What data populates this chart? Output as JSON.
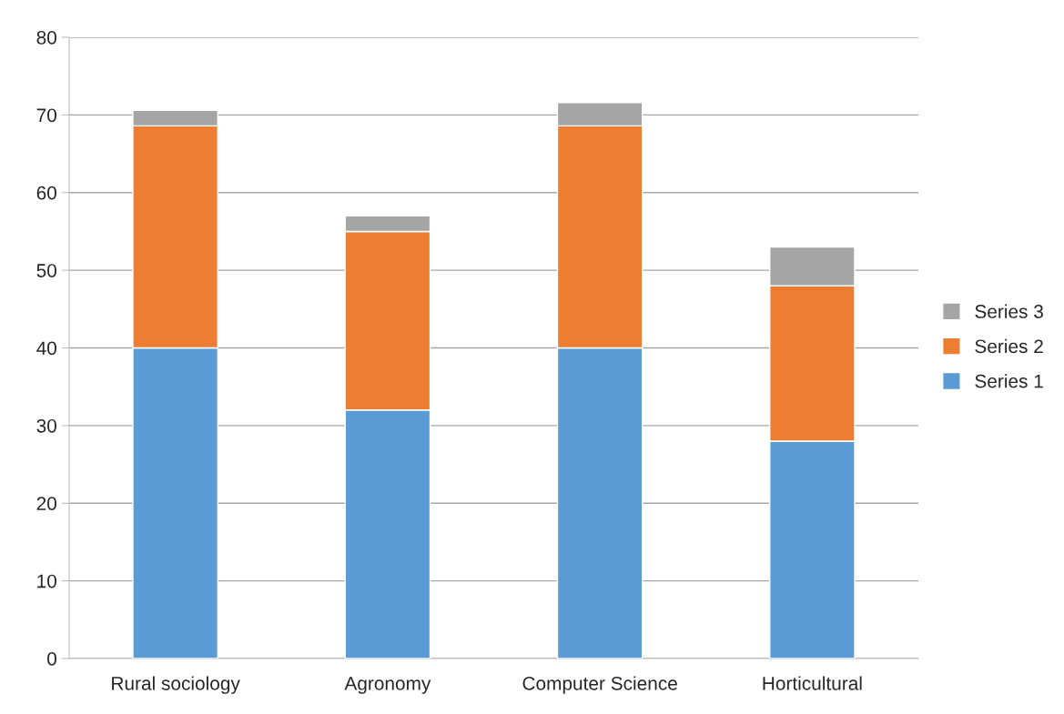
{
  "chart_data": {
    "type": "bar",
    "stacked": true,
    "categories": [
      "Rural sociology",
      "Agronomy",
      "Computer Science",
      "Horticultural"
    ],
    "series": [
      {
        "name": "Series 1",
        "color": "#5b9bd5",
        "values": [
          40,
          32,
          40,
          28
        ]
      },
      {
        "name": "Series 2",
        "color": "#ed7d31",
        "values": [
          28.6,
          23,
          28.6,
          20
        ]
      },
      {
        "name": "Series 3",
        "color": "#a5a5a5",
        "values": [
          2,
          2,
          3,
          5
        ]
      }
    ],
    "ylim": [
      0,
      80
    ],
    "yticks": [
      0,
      10,
      20,
      30,
      40,
      50,
      60,
      70,
      80
    ],
    "grid": "y",
    "legend": "right"
  }
}
